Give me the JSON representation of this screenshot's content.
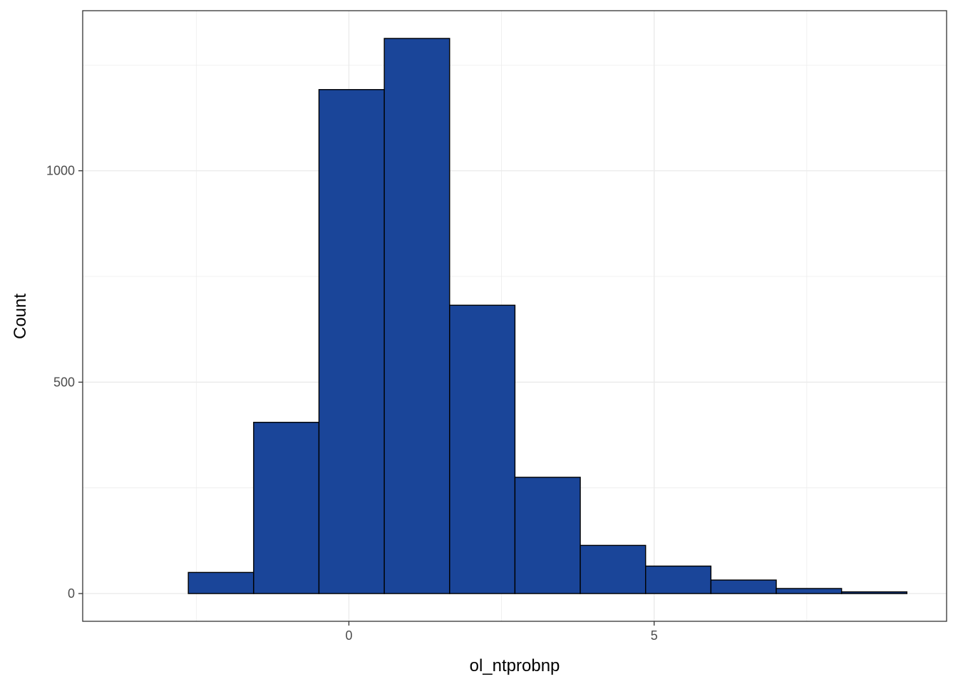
{
  "chart_data": {
    "type": "bar",
    "title": "",
    "xlabel": "ol_ntprobnp",
    "ylabel": "Count",
    "bin_width": 1.07,
    "bins": [
      {
        "x0": -3.7,
        "x1": -2.63,
        "count": 0
      },
      {
        "x0": -2.63,
        "x1": -1.56,
        "count": 50
      },
      {
        "x0": -1.56,
        "x1": -0.49,
        "count": 405
      },
      {
        "x0": -0.49,
        "x1": 0.58,
        "count": 1192
      },
      {
        "x0": 0.58,
        "x1": 1.65,
        "count": 1313
      },
      {
        "x0": 1.65,
        "x1": 2.72,
        "count": 682
      },
      {
        "x0": 2.72,
        "x1": 3.79,
        "count": 275
      },
      {
        "x0": 3.79,
        "x1": 4.86,
        "count": 114
      },
      {
        "x0": 4.86,
        "x1": 5.93,
        "count": 65
      },
      {
        "x0": 5.93,
        "x1": 7.0,
        "count": 32
      },
      {
        "x0": 7.0,
        "x1": 8.07,
        "count": 12
      },
      {
        "x0": 8.07,
        "x1": 9.14,
        "count": 4
      }
    ],
    "xlim": [
      -4.36,
      9.79
    ],
    "ylim": [
      -65.6,
      1378.6
    ],
    "x_ticks": [
      0,
      5
    ],
    "y_ticks": [
      0,
      500,
      1000
    ],
    "x_tick_labels": [
      "0",
      "5"
    ],
    "y_tick_labels": [
      "0",
      "500",
      "1000"
    ],
    "bar_fill": "#1a4599",
    "bar_stroke": "#000000",
    "grid": true,
    "grid_color": "#ebebeb",
    "panel_border": "#333333",
    "background": "#ffffff",
    "legend": "none"
  }
}
